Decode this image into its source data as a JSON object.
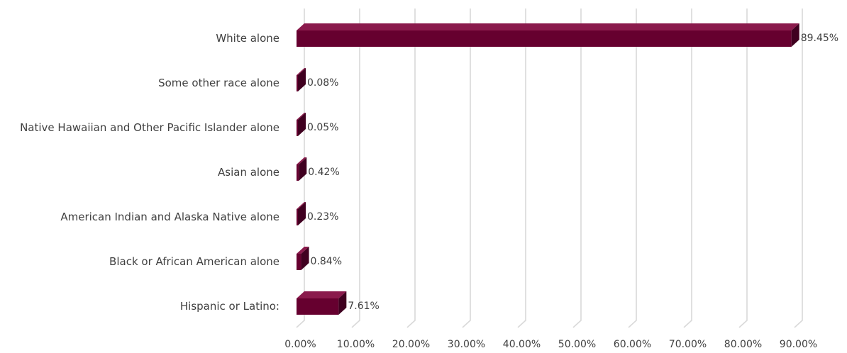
{
  "chart_data": {
    "type": "bar",
    "orientation": "horizontal",
    "style": "3d",
    "categories": [
      "White alone",
      "Some other race alone",
      "Native Hawaiian and Other Pacific Islander alone",
      "Asian alone",
      "American Indian and Alaska Native alone",
      "Black or African American alone",
      "Hispanic or Latino:"
    ],
    "values": [
      89.45,
      0.08,
      0.05,
      0.42,
      0.23,
      0.84,
      7.61
    ],
    "data_labels": [
      "89.45%",
      "0.08%",
      "0.05%",
      "0.42%",
      "0.23%",
      "0.84%",
      "7.61%"
    ],
    "xlim": [
      0,
      90
    ],
    "xticks": [
      0,
      10,
      20,
      30,
      40,
      50,
      60,
      70,
      80,
      90
    ],
    "xtick_labels": [
      "0.00%",
      "10.00%",
      "20.00%",
      "30.00%",
      "40.00%",
      "50.00%",
      "60.00%",
      "70.00%",
      "80.00%",
      "90.00%"
    ],
    "grid": true,
    "legend": "none",
    "title": "",
    "xlabel": "",
    "ylabel": "",
    "colors": {
      "bar_front": "#66002f",
      "bar_top": "#8a1a4c",
      "bar_side": "#400020",
      "grid": "#d9d9d9",
      "text": "#404040"
    }
  }
}
